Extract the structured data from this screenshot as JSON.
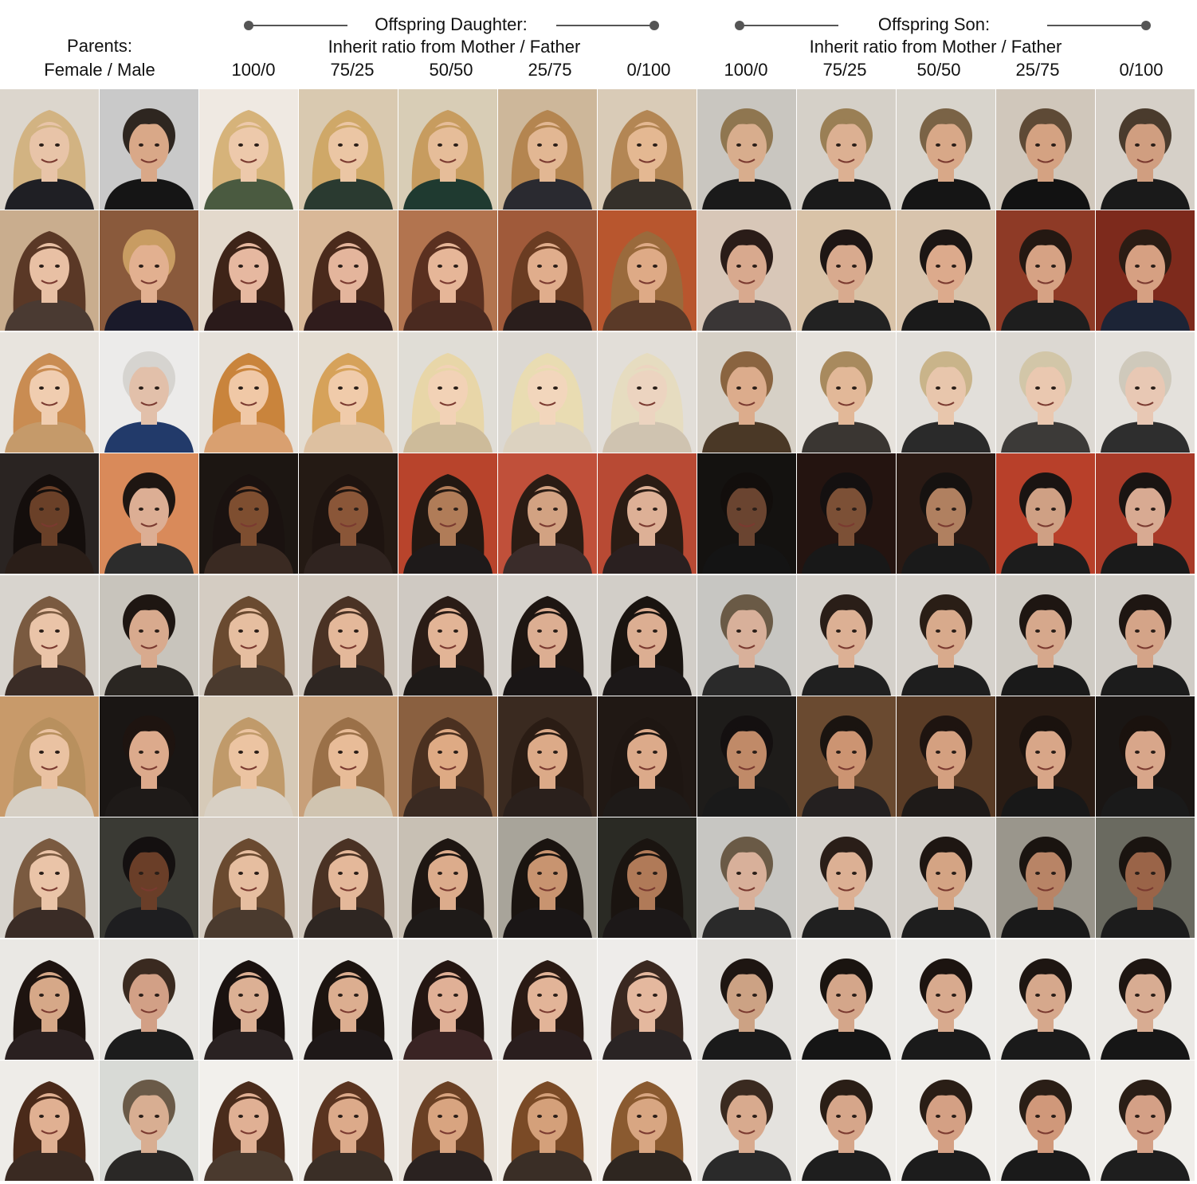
{
  "header": {
    "parents_title": "Parents:",
    "parents_subtitle": "Female / Male",
    "daughter_title": "Offspring Daughter:",
    "daughter_subtitle": "Inherit ratio from Mother / Father",
    "son_title": "Offspring Son:",
    "son_subtitle": "Inherit ratio from Mother / Father",
    "ratios": [
      "100/0",
      "75/25",
      "50/50",
      "25/75",
      "0/100"
    ]
  },
  "colors": {
    "connector": "#555555"
  },
  "face_grid": {
    "columns": [
      "mother",
      "father",
      "daughter-100-0",
      "daughter-75-25",
      "daughter-50-50",
      "daughter-25-75",
      "daughter-0-100",
      "son-100-0",
      "son-75-25",
      "son-50-50",
      "son-25-75",
      "son-0-100"
    ],
    "row_count": 9,
    "rows": [
      {
        "bg": [
          "#dcd6cd",
          "#c9c9c9",
          "#efe9e2",
          "#d9c9b0",
          "#d8cdb6",
          "#cdb79a",
          "#d9cbb7",
          "#c9c6c0",
          "#d5d0c8",
          "#d8d4cc",
          "#d0c7bb",
          "#d6d0c8"
        ],
        "hair": [
          "#d2b382",
          "#2e2620",
          "#d6b37a",
          "#cfa868",
          "#c79c5f",
          "#b48550",
          "#b38654",
          "#8f7650",
          "#9a7f55",
          "#7a6346",
          "#5e4a36",
          "#4a3b2d"
        ],
        "skin": [
          "#e8c4a8",
          "#d9a888",
          "#edc9ab",
          "#ebc6a4",
          "#e6bd99",
          "#e2b793",
          "#e4b892",
          "#d8ad8d",
          "#dcb092",
          "#d8a888",
          "#d4a282",
          "#d09e80"
        ],
        "cloth": [
          "#1f1f24",
          "#151515",
          "#4a5a40",
          "#2a3a30",
          "#1f3a30",
          "#2a2a30",
          "#35302a",
          "#1a1a1a",
          "#1a1a1a",
          "#151515",
          "#121212",
          "#1a1a1a"
        ]
      },
      {
        "bg": [
          "#c9ad8e",
          "#8a5a3c",
          "#e3d9cc",
          "#d9b898",
          "#b2744f",
          "#a05a3a",
          "#b8562e",
          "#d8c7b8",
          "#d9c3a8",
          "#d8c4ad",
          "#8e3a26",
          "#7d2a1c"
        ],
        "hair": [
          "#5a3826",
          "#c89c62",
          "#3e2418",
          "#4a2a1c",
          "#5a3020",
          "#6a3c22",
          "#9a6a3c",
          "#2a1c18",
          "#1e1614",
          "#1c1614",
          "#241812",
          "#2a1c14"
        ],
        "skin": [
          "#e8c0a4",
          "#e2b090",
          "#e6b8a0",
          "#e4b59c",
          "#e6b698",
          "#e0ad8c",
          "#deaa86",
          "#d8a98e",
          "#d8aa8e",
          "#dcaa8c",
          "#d6a284",
          "#d6a082"
        ],
        "cloth": [
          "#4a3a32",
          "#1a1a2a",
          "#2a1a1a",
          "#301c1c",
          "#4a2a20",
          "#2a1e1c",
          "#5a3a28",
          "#3a3636",
          "#222",
          "#1a1a1a",
          "#1e1e1e",
          "#1c2436"
        ]
      },
      {
        "bg": [
          "#e8e4de",
          "#ecebea",
          "#e6e1da",
          "#e4ddd2",
          "#e0ddd6",
          "#dcd8d2",
          "#e2ded8",
          "#d6d0c6",
          "#e6e2dc",
          "#e2dfda",
          "#dcd8d2",
          "#e4e1dc"
        ],
        "hair": [
          "#c98c52",
          "#d6d4d0",
          "#c9843c",
          "#d6a25a",
          "#e8d6a8",
          "#e9dcb2",
          "#e6dcc0",
          "#8a6440",
          "#a88a5e",
          "#c9b48a",
          "#d2c6a8",
          "#cfc9bb"
        ],
        "skin": [
          "#f0cdb0",
          "#e2c0aa",
          "#f0c8a6",
          "#f0cbaa",
          "#f2d2b6",
          "#f2d6bc",
          "#ecd4c0",
          "#dcac8c",
          "#e2b898",
          "#e8c6ac",
          "#eac8b0",
          "#e8c8b4"
        ],
        "cloth": [
          "#c59a6a",
          "#223a6a",
          "#d9a070",
          "#ddc0a0",
          "#cdbb9a",
          "#dcd2c0",
          "#cfc3b0",
          "#4a3826",
          "#3a3632",
          "#2a2a2a",
          "#3c3a38",
          "#2e2e2e"
        ]
      },
      {
        "bg": [
          "#2a2422",
          "#d98a5a",
          "#1c1612",
          "#241a14",
          "#b8442c",
          "#c0503a",
          "#b84a34",
          "#141210",
          "#241410",
          "#2a1a14",
          "#b8402a",
          "#a83a28"
        ],
        "hair": [
          "#140e0c",
          "#1e1612",
          "#1a1210",
          "#1e1410",
          "#221812",
          "#2a1c14",
          "#2a1c14",
          "#120e0c",
          "#141010",
          "#161210",
          "#1a1412",
          "#1a1412"
        ],
        "skin": [
          "#6a4028",
          "#dcae94",
          "#7e4e30",
          "#8a5638",
          "#b07c58",
          "#d2a282",
          "#ddb096",
          "#6a4430",
          "#7c5036",
          "#b08060",
          "#cfa084",
          "#d8aa92"
        ],
        "cloth": [
          "#2a1e18",
          "#2c2c2c",
          "#3a2a22",
          "#302420",
          "#1e1a1a",
          "#3a2c2a",
          "#2a2020",
          "#141414",
          "#181818",
          "#1a1a1a",
          "#1c1c1c",
          "#1a1a1a"
        ]
      },
      {
        "bg": [
          "#d8d4ce",
          "#c8c4bc",
          "#d4ccc2",
          "#d0c8be",
          "#cfc9c2",
          "#d6d2cc",
          "#d2cec8",
          "#c7c6c2",
          "#d4d0ca",
          "#d6d2cc",
          "#cfcbc4",
          "#d0ccc6"
        ],
        "hair": [
          "#7a5a40",
          "#1e1612",
          "#6a4a30",
          "#4a3224",
          "#2a1c16",
          "#1e1612",
          "#1a1410",
          "#6a5a46",
          "#2a1e18",
          "#2a1e16",
          "#1e1612",
          "#1e1612"
        ],
        "skin": [
          "#eac4a8",
          "#d8aa8e",
          "#e6bea0",
          "#e4b89a",
          "#e2b496",
          "#dcae92",
          "#dcae92",
          "#d8b09a",
          "#dcb094",
          "#d8aa8c",
          "#d6a88c",
          "#d4a488"
        ],
        "cloth": [
          "#3a2c26",
          "#2a2622",
          "#4a3a2e",
          "#2e2622",
          "#1e1a18",
          "#1a1616",
          "#1c1818",
          "#2a2a2a",
          "#202020",
          "#1e1e1e",
          "#1a1a1a",
          "#1c1c1c"
        ]
      },
      {
        "bg": [
          "#c89a6a",
          "#1a1614",
          "#d6cab8",
          "#c8a07a",
          "#8a6040",
          "#3a2a20",
          "#201814",
          "#1e1c1a",
          "#6a4a30",
          "#5a3c26",
          "#2a1c14",
          "#1a1614"
        ],
        "hair": [
          "#b8905e",
          "#1e1410",
          "#c09a6a",
          "#9a7048",
          "#4a3020",
          "#2a1c14",
          "#1e1612",
          "#141010",
          "#1a1410",
          "#1e1410",
          "#1a120e",
          "#1a120e"
        ],
        "skin": [
          "#eac2a2",
          "#dcaa8c",
          "#ecc4a2",
          "#e8bc98",
          "#deaa84",
          "#dcaa88",
          "#dcaa8a",
          "#c08a68",
          "#cc9472",
          "#d4a080",
          "#d8a688",
          "#d8a68a"
        ],
        "cloth": [
          "#d6cfc4",
          "#1e1a18",
          "#d8d0c4",
          "#d0c4b0",
          "#3a2a22",
          "#2a201c",
          "#1e1a18",
          "#1a1a1a",
          "#242020",
          "#1e1a18",
          "#181818",
          "#1a1a1a"
        ]
      },
      {
        "bg": [
          "#d8d4ce",
          "#3a3a34",
          "#d4ccc2",
          "#d0c8be",
          "#c8c0b4",
          "#a8a49a",
          "#2a2a24",
          "#c7c6c2",
          "#d4d0ca",
          "#d2cec8",
          "#9a968c",
          "#6a6a60"
        ],
        "hair": [
          "#7a5a40",
          "#141010",
          "#6a4a30",
          "#4a3224",
          "#1e1612",
          "#1a1410",
          "#1a1410",
          "#6a5a46",
          "#2a1e18",
          "#1e1612",
          "#1a1410",
          "#1a1410"
        ],
        "skin": [
          "#eac4a8",
          "#6a3e28",
          "#e6bea0",
          "#e4b89a",
          "#dcac8c",
          "#c89470",
          "#b07a58",
          "#d8b09a",
          "#dcb094",
          "#d4a484",
          "#b88466",
          "#9a6448"
        ],
        "cloth": [
          "#3a2c26",
          "#1e1e20",
          "#4a3a2e",
          "#2e2622",
          "#1e1a18",
          "#1a1616",
          "#1c1818",
          "#2a2a2a",
          "#202020",
          "#1e1e1e",
          "#1a1a1a",
          "#1c1c1c"
        ]
      },
      {
        "bg": [
          "#eae8e4",
          "#e6e4e0",
          "#ecebe8",
          "#eceae6",
          "#e8e6e2",
          "#eae8e4",
          "#eeecea",
          "#e2e0dc",
          "#ebe9e5",
          "#ecebe8",
          "#eceae6",
          "#ebe9e5"
        ],
        "hair": [
          "#1e1410",
          "#3a2a20",
          "#1a1210",
          "#1c1410",
          "#241612",
          "#2a1a14",
          "#3a2820",
          "#1e1612",
          "#1a1410",
          "#1c1410",
          "#1e1612",
          "#1e1612"
        ],
        "skin": [
          "#d6a888",
          "#d2a086",
          "#dcb094",
          "#dcae90",
          "#e0b096",
          "#e2b498",
          "#e4b89e",
          "#ccA284",
          "#d4a68a",
          "#d8aa8e",
          "#d6a88c",
          "#d8ac92"
        ],
        "cloth": [
          "#2a2020",
          "#1c1c1c",
          "#2a2222",
          "#1e1818",
          "#3a2424",
          "#2a1e1e",
          "#2a2424",
          "#1a1a1a",
          "#151515",
          "#1a1a1a",
          "#1a1a1a",
          "#161616"
        ]
      },
      {
        "bg": [
          "#eeece8",
          "#d8dad6",
          "#f2f0ec",
          "#eeebe6",
          "#e8e2da",
          "#f0ebe4",
          "#f2eeea",
          "#e4e2de",
          "#eeece8",
          "#f0eeea",
          "#eeece8",
          "#f0eeea"
        ],
        "hair": [
          "#4a2a1a",
          "#6a5a48",
          "#4a2c1c",
          "#5a3420",
          "#6a4024",
          "#7a4a26",
          "#8a5a30",
          "#3a2a20",
          "#2a1e16",
          "#2a1e16",
          "#2a1e16",
          "#2a1e16"
        ],
        "skin": [
          "#e0b092",
          "#d8ae92",
          "#e0b094",
          "#dcaa8a",
          "#d8a480",
          "#d4a07a",
          "#d8a682",
          "#d8aa8e",
          "#d6a68a",
          "#d4a084",
          "#d0987a",
          "#d4a086"
        ],
        "cloth": [
          "#3a2a22",
          "#2a2826",
          "#4a3a2e",
          "#3a2e26",
          "#2a2220",
          "#3a2e26",
          "#2e2620",
          "#2a2a2a",
          "#1e1e1e",
          "#1c1c1c",
          "#1a1a1a",
          "#1e1e1e"
        ]
      }
    ]
  }
}
